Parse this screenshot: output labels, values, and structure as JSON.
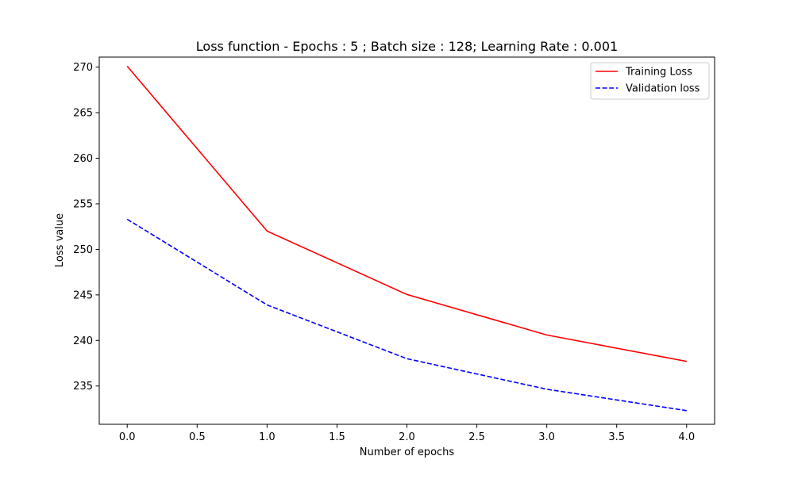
{
  "chart_data": {
    "type": "line",
    "title": "Loss function - Epochs : 5 ; Batch size : 128; Learning Rate : 0.001",
    "xlabel": "Number of epochs",
    "ylabel": "Loss value",
    "x": [
      0,
      1,
      2,
      3,
      4
    ],
    "xlim": [
      -0.2,
      4.2
    ],
    "ylim": [
      230.8,
      271.1
    ],
    "xticks": [
      0,
      0.5,
      1,
      1.5,
      2,
      2.5,
      3,
      3.5,
      4
    ],
    "xtick_labels": [
      "0.0",
      "0.5",
      "1.0",
      "1.5",
      "2.0",
      "2.5",
      "3.0",
      "3.5",
      "4.0"
    ],
    "yticks": [
      235,
      240,
      245,
      250,
      255,
      260,
      265,
      270
    ],
    "ytick_labels": [
      "235",
      "240",
      "245",
      "250",
      "255",
      "260",
      "265",
      "270"
    ],
    "grid": false,
    "legend_position": "top-right",
    "series": [
      {
        "name": "Training Loss",
        "color": "#ff0000",
        "style": "solid",
        "values": [
          270.1,
          252.0,
          245.05,
          240.6,
          237.7
        ]
      },
      {
        "name": "Validation loss",
        "color": "#0000ff",
        "style": "dashed",
        "values": [
          253.3,
          243.9,
          238.0,
          234.65,
          232.3
        ]
      }
    ]
  }
}
